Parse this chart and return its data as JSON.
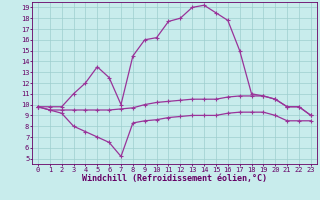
{
  "xlabel": "Windchill (Refroidissement éolien,°C)",
  "ylabel": "",
  "xlim": [
    -0.5,
    23.5
  ],
  "ylim": [
    4.5,
    19.5
  ],
  "xticks": [
    0,
    1,
    2,
    3,
    4,
    5,
    6,
    7,
    8,
    9,
    10,
    11,
    12,
    13,
    14,
    15,
    16,
    17,
    18,
    19,
    20,
    21,
    22,
    23
  ],
  "yticks": [
    5,
    6,
    7,
    8,
    9,
    10,
    11,
    12,
    13,
    14,
    15,
    16,
    17,
    18,
    19
  ],
  "bg_color": "#c8ecec",
  "grid_color": "#9ecece",
  "line_color": "#993399",
  "line1_x": [
    0,
    1,
    2,
    3,
    4,
    5,
    6,
    7,
    8,
    9,
    10,
    11,
    12,
    13,
    14,
    15,
    16,
    17,
    18,
    19,
    20,
    21,
    22,
    23
  ],
  "line1_y": [
    9.8,
    9.8,
    9.8,
    11.0,
    12.0,
    13.5,
    12.5,
    10.0,
    14.5,
    16.0,
    16.2,
    17.7,
    18.0,
    19.0,
    19.2,
    18.5,
    17.8,
    15.0,
    11.0,
    10.8,
    10.5,
    9.8,
    9.8,
    9.0
  ],
  "line2_x": [
    0,
    1,
    2,
    3,
    4,
    5,
    6,
    7,
    8,
    9,
    10,
    11,
    12,
    13,
    14,
    15,
    16,
    17,
    18,
    19,
    20,
    21,
    22,
    23
  ],
  "line2_y": [
    9.8,
    9.5,
    9.5,
    9.5,
    9.5,
    9.5,
    9.5,
    9.6,
    9.7,
    10.0,
    10.2,
    10.3,
    10.4,
    10.5,
    10.5,
    10.5,
    10.7,
    10.8,
    10.8,
    10.8,
    10.5,
    9.8,
    9.8,
    9.0
  ],
  "line3_x": [
    0,
    1,
    2,
    3,
    4,
    5,
    6,
    7,
    8,
    9,
    10,
    11,
    12,
    13,
    14,
    15,
    16,
    17,
    18,
    19,
    20,
    21,
    22,
    23
  ],
  "line3_y": [
    9.8,
    9.5,
    9.2,
    8.0,
    7.5,
    7.0,
    6.5,
    5.2,
    8.3,
    8.5,
    8.6,
    8.8,
    8.9,
    9.0,
    9.0,
    9.0,
    9.2,
    9.3,
    9.3,
    9.3,
    9.0,
    8.5,
    8.5,
    8.5
  ],
  "tick_fontsize": 5.0,
  "xlabel_fontsize": 6.0
}
